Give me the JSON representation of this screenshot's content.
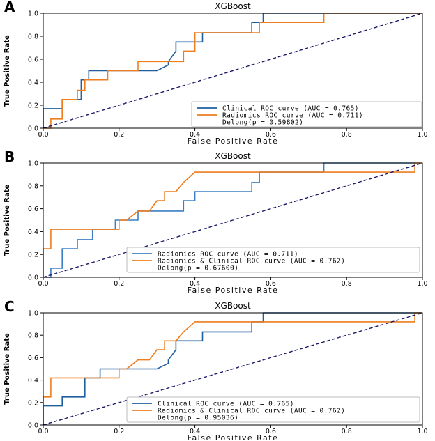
{
  "chart_data": [
    {
      "panel_label": "A",
      "type": "line",
      "title": "XGBoost",
      "xlabel": "False Positive Rate",
      "ylabel": "True Positive Rate",
      "xlim": [
        0,
        1
      ],
      "ylim": [
        0,
        1
      ],
      "xticks": [
        "0.0",
        "0.2",
        "0.4",
        "0.6",
        "0.8",
        "1.0"
      ],
      "yticks": [
        "0.0",
        "0.2",
        "0.4",
        "0.6",
        "0.8",
        "1.0"
      ],
      "legend_position": "lower-right",
      "delong_text": "Delong(p =  0.59802)",
      "series": [
        {
          "name": "Clinical ROC curve (AUC = 0.765)",
          "color": "#1f5fa0",
          "x": [
            0,
            0,
            0.05,
            0.05,
            0.1,
            0.1,
            0.12,
            0.12,
            0.19,
            0.3,
            0.33,
            0.33,
            0.35,
            0.35,
            0.42,
            0.42,
            0.45,
            0.45,
            0.52,
            0.55,
            0.55,
            0.58,
            0.58,
            0.74,
            1
          ],
          "y": [
            0,
            0.17,
            0.17,
            0.25,
            0.25,
            0.42,
            0.42,
            0.5,
            0.5,
            0.5,
            0.55,
            0.58,
            0.67,
            0.75,
            0.75,
            0.83,
            0.83,
            0.83,
            0.83,
            0.83,
            0.92,
            0.92,
            1.0,
            1.0,
            1.0
          ]
        },
        {
          "name": "Radiomics ROC curve (AUC = 0.711)",
          "color": "#ee7d1e",
          "x": [
            0,
            0.02,
            0.02,
            0.05,
            0.05,
            0.09,
            0.09,
            0.11,
            0.11,
            0.13,
            0.13,
            0.17,
            0.17,
            0.25,
            0.25,
            0.37,
            0.37,
            0.4,
            0.4,
            0.57,
            0.57,
            0.74,
            0.74,
            1
          ],
          "y": [
            0,
            0,
            0.08,
            0.08,
            0.25,
            0.25,
            0.33,
            0.33,
            0.42,
            0.42,
            0.42,
            0.42,
            0.5,
            0.5,
            0.58,
            0.58,
            0.67,
            0.67,
            0.83,
            0.83,
            0.92,
            0.92,
            1.0,
            1.0
          ]
        },
        {
          "name": "chance",
          "color": "#1a1a66",
          "dashed": true,
          "x": [
            0,
            1
          ],
          "y": [
            0,
            1
          ]
        }
      ]
    },
    {
      "panel_label": "B",
      "type": "line",
      "title": "XGBoost",
      "xlabel": "False Positive Rate",
      "ylabel": "True Positive Rate",
      "xlim": [
        0,
        1
      ],
      "ylim": [
        0,
        1
      ],
      "xticks": [
        "0.0",
        "0.2",
        "0.4",
        "0.6",
        "0.8",
        "1.0"
      ],
      "yticks": [
        "0.0",
        "0.2",
        "0.4",
        "0.6",
        "0.8",
        "1.0"
      ],
      "legend_position": "lower-right",
      "delong_text": "Delong(p =  0.67600)",
      "series": [
        {
          "name": "Radiomics ROC curve (AUC = 0.711)",
          "color": "#3d7fc4",
          "x": [
            0,
            0.02,
            0.02,
            0.05,
            0.05,
            0.09,
            0.09,
            0.13,
            0.13,
            0.19,
            0.19,
            0.25,
            0.25,
            0.37,
            0.37,
            0.4,
            0.4,
            0.55,
            0.55,
            0.57,
            0.57,
            0.74,
            0.74,
            0.98
          ],
          "y": [
            0,
            0,
            0.08,
            0.08,
            0.25,
            0.25,
            0.33,
            0.33,
            0.42,
            0.42,
            0.5,
            0.5,
            0.58,
            0.58,
            0.67,
            0.67,
            0.75,
            0.75,
            0.83,
            0.83,
            0.92,
            0.92,
            1.0,
            1.0
          ]
        },
        {
          "name": "Radiomics & Clinical ROC curve (AUC = 0.762)",
          "color": "#ee7d1e",
          "x": [
            0,
            0,
            0.02,
            0.02,
            0.2,
            0.2,
            0.22,
            0.25,
            0.28,
            0.3,
            0.32,
            0.32,
            0.35,
            0.35,
            0.37,
            0.4,
            0.57,
            0.98,
            0.98,
            1
          ],
          "y": [
            0,
            0.25,
            0.25,
            0.42,
            0.42,
            0.5,
            0.5,
            0.58,
            0.58,
            0.67,
            0.67,
            0.75,
            0.75,
            0.75,
            0.83,
            0.92,
            0.92,
            0.92,
            1.0,
            1.0
          ]
        },
        {
          "name": "chance",
          "color": "#1a1a66",
          "dashed": true,
          "x": [
            0,
            1
          ],
          "y": [
            0,
            1
          ]
        }
      ]
    },
    {
      "panel_label": "C",
      "type": "line",
      "title": "XGBoost",
      "xlabel": "False Positive Rate",
      "ylabel": "True Positive Rate",
      "xlim": [
        0,
        1
      ],
      "ylim": [
        0,
        1
      ],
      "xticks": [
        "0.0",
        "0.2",
        "0.4",
        "0.6",
        "0.8",
        "1.0"
      ],
      "yticks": [
        "0.0",
        "0.2",
        "0.4",
        "0.6",
        "0.8",
        "1.0"
      ],
      "legend_position": "lower-right",
      "delong_text": "Delong(p =  0.95036)",
      "series": [
        {
          "name": "Clinical ROC curve (AUC = 0.765)",
          "color": "#1f5fa0",
          "x": [
            0,
            0,
            0.05,
            0.05,
            0.11,
            0.11,
            0.15,
            0.15,
            0.19,
            0.3,
            0.33,
            0.33,
            0.35,
            0.35,
            0.42,
            0.42,
            0.45,
            0.45,
            0.52,
            0.55,
            0.55,
            0.58,
            0.58,
            0.74,
            1
          ],
          "y": [
            0,
            0.17,
            0.17,
            0.25,
            0.25,
            0.42,
            0.42,
            0.5,
            0.5,
            0.5,
            0.55,
            0.58,
            0.67,
            0.75,
            0.75,
            0.83,
            0.83,
            0.83,
            0.83,
            0.83,
            0.92,
            0.92,
            1.0,
            1.0,
            1.0
          ]
        },
        {
          "name": "Radiomics & Clinical ROC curve (AUC = 0.762)",
          "color": "#ee7d1e",
          "x": [
            0,
            0,
            0.02,
            0.02,
            0.2,
            0.2,
            0.22,
            0.25,
            0.28,
            0.3,
            0.32,
            0.32,
            0.35,
            0.35,
            0.37,
            0.4,
            0.57,
            0.98,
            0.98,
            1
          ],
          "y": [
            0,
            0.25,
            0.25,
            0.42,
            0.42,
            0.5,
            0.5,
            0.58,
            0.58,
            0.67,
            0.67,
            0.75,
            0.75,
            0.75,
            0.83,
            0.92,
            0.92,
            0.92,
            1.0,
            1.0
          ]
        },
        {
          "name": "chance",
          "color": "#1a1a66",
          "dashed": true,
          "x": [
            0,
            1
          ],
          "y": [
            0,
            1
          ]
        }
      ]
    }
  ]
}
